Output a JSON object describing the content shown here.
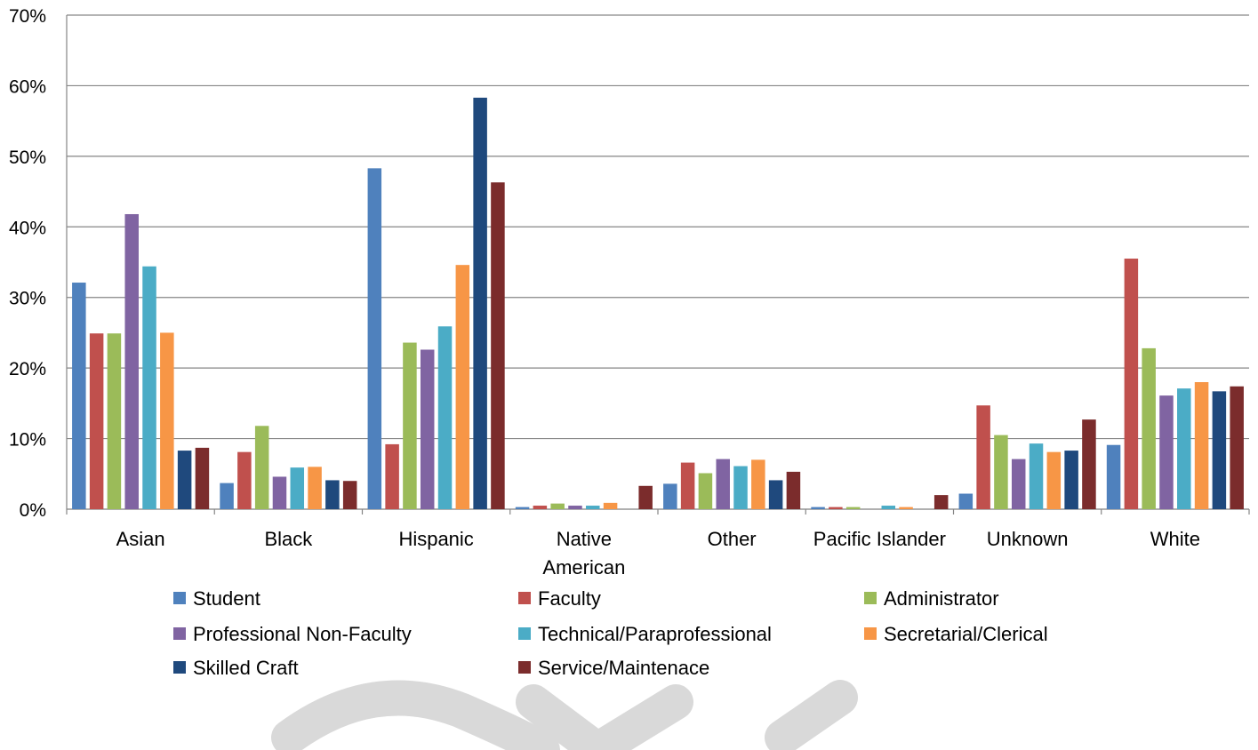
{
  "watermark": {
    "label": "watermark",
    "color": "#d9d9d9"
  },
  "chart_data": {
    "type": "bar",
    "title": "",
    "xlabel": "",
    "ylabel": "",
    "ylim": [
      0,
      70
    ],
    "y_ticks": [
      0,
      10,
      20,
      30,
      40,
      50,
      60,
      70
    ],
    "y_tick_format": "{v}%",
    "grid": true,
    "legend_position": "bottom",
    "categories": [
      "Asian",
      "Black",
      "Hispanic",
      "Native American",
      "Other",
      "Pacific Islander",
      "Unknown",
      "White"
    ],
    "category_lines": [
      [
        "Asian"
      ],
      [
        "Black"
      ],
      [
        "Hispanic"
      ],
      [
        "Native",
        "American"
      ],
      [
        "Other"
      ],
      [
        "Pacific Islander"
      ],
      [
        "Unknown"
      ],
      [
        "White"
      ]
    ],
    "series": [
      {
        "name": "Student",
        "color": "#4f81bd",
        "values": [
          32.1,
          3.7,
          48.3,
          0.3,
          3.6,
          0.3,
          2.2,
          9.1
        ]
      },
      {
        "name": "Faculty",
        "color": "#c0504d",
        "values": [
          24.9,
          8.1,
          9.2,
          0.5,
          6.6,
          0.3,
          14.7,
          35.5
        ]
      },
      {
        "name": "Administrator",
        "color": "#9bbb59",
        "values": [
          24.9,
          11.8,
          23.6,
          0.8,
          5.1,
          0.3,
          10.5,
          22.8
        ]
      },
      {
        "name": "Professional Non-Faculty",
        "color": "#8064a2",
        "values": [
          41.8,
          4.6,
          22.6,
          0.5,
          7.1,
          0.0,
          7.1,
          16.1
        ]
      },
      {
        "name": "Technical/Paraprofessional",
        "color": "#4bacc6",
        "values": [
          34.4,
          5.9,
          25.9,
          0.5,
          6.1,
          0.5,
          9.3,
          17.1
        ]
      },
      {
        "name": "Secretarial/Clerical",
        "color": "#f79646",
        "values": [
          25.0,
          6.0,
          34.6,
          0.9,
          7.0,
          0.3,
          8.1,
          18.0
        ]
      },
      {
        "name": "Skilled Craft",
        "color": "#1f497d",
        "values": [
          8.3,
          4.1,
          58.3,
          0.0,
          4.1,
          0.0,
          8.3,
          16.7
        ]
      },
      {
        "name": "Service/Maintenace",
        "color": "#7b2c2c",
        "values": [
          8.7,
          4.0,
          46.3,
          3.3,
          5.3,
          2.0,
          12.7,
          17.4
        ]
      }
    ]
  }
}
